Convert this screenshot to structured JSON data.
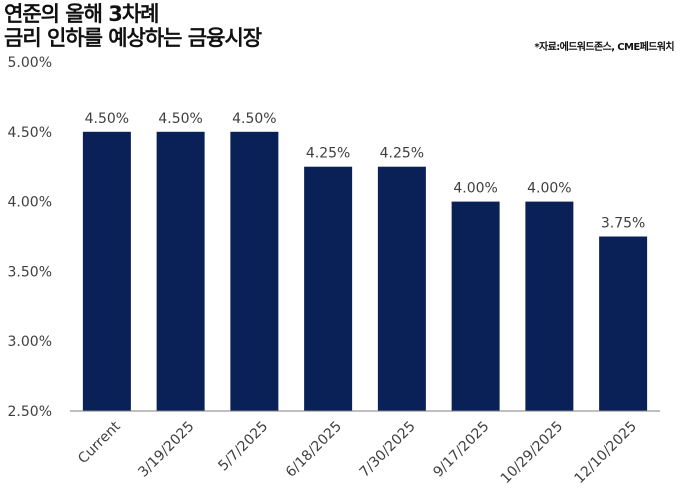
{
  "headline": {
    "line1": "연준의 올해 3차례",
    "line2": "금리 인하를 예상하는 금융시장"
  },
  "source_note": "*자료:에드워드존스, CME페드워치",
  "chart_data": {
    "type": "bar",
    "categories": [
      "Current",
      "3/19/2025",
      "5/7/2025",
      "6/18/2025",
      "7/30/2025",
      "9/17/2025",
      "10/29/2025",
      "12/10/2025"
    ],
    "values": [
      4.5,
      4.5,
      4.5,
      4.25,
      4.25,
      4.0,
      4.0,
      3.75
    ],
    "data_labels": [
      "4.50%",
      "4.50%",
      "4.50%",
      "4.25%",
      "4.25%",
      "4.00%",
      "4.00%",
      "3.75%"
    ],
    "y_ticks": [
      2.5,
      3.0,
      3.5,
      4.0,
      4.5,
      5.0
    ],
    "y_tick_labels": [
      "2.50%",
      "3.00%",
      "3.50%",
      "4.00%",
      "4.50%",
      "5.00%"
    ],
    "ylim": [
      2.5,
      5.0
    ],
    "title": "",
    "xlabel": "",
    "ylabel": "",
    "bar_color": "#0a2158",
    "axis_color": "#7f7f7f",
    "grid": false,
    "legend": "none"
  }
}
